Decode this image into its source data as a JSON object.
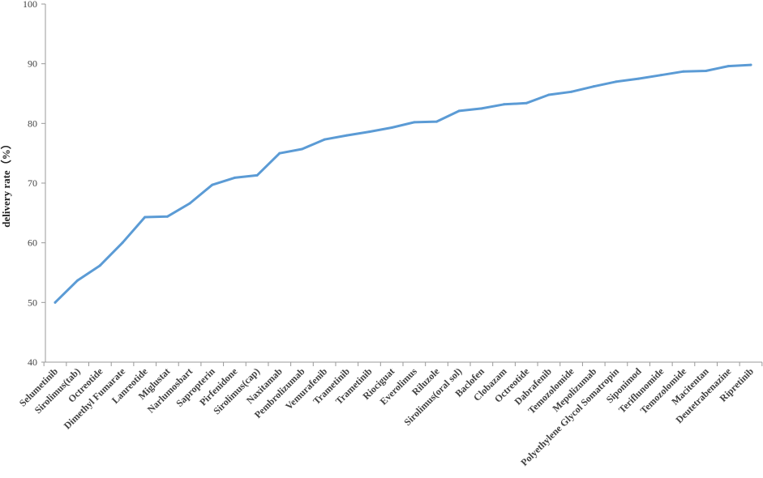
{
  "chart_data": {
    "type": "line",
    "title": "",
    "xlabel": "",
    "ylabel": "delivery rate（%）",
    "ylim": [
      40,
      100
    ],
    "yticks": [
      40,
      50,
      60,
      70,
      80,
      90,
      100
    ],
    "grid": false,
    "legend": "none",
    "categories": [
      "Selumetinib",
      "Sirolimus(tab)",
      "Octreotide",
      "Dimethyl Fumarate",
      "Lanreotide",
      "Miglustat",
      "Narlumosbart",
      "Sapropterin",
      "Pirfenidone",
      "Sirolimus(cap)",
      "Naxitamab",
      "Pembrolizumab",
      "Vemurafenib",
      "Trametinib",
      "Trametinib",
      "Riociguat",
      "Everolimus",
      "Riluzole",
      "Sirolimus(oral sol)",
      "Baclofen",
      "Clobazam",
      "Octreotide",
      "Dabrafenib",
      "Temozolomide",
      "Mepolizumab",
      "Polyethylene Glycol Somatropin",
      "Siponimod",
      "Teriflunomide",
      "Temozolomide",
      "Macitentan",
      "Deutetrabenazine",
      "Ripretinib"
    ],
    "series": [
      {
        "name": "",
        "color": "#5b9bd5",
        "values": [
          50.0,
          53.7,
          56.2,
          60.0,
          64.3,
          64.4,
          66.6,
          69.7,
          70.9,
          71.3,
          75.0,
          75.7,
          77.3,
          78.0,
          78.6,
          79.3,
          80.2,
          80.3,
          82.1,
          82.5,
          83.2,
          83.4,
          84.8,
          85.3,
          86.2,
          87.0,
          87.5,
          88.1,
          88.7,
          88.8,
          89.6,
          89.8
        ]
      }
    ]
  }
}
